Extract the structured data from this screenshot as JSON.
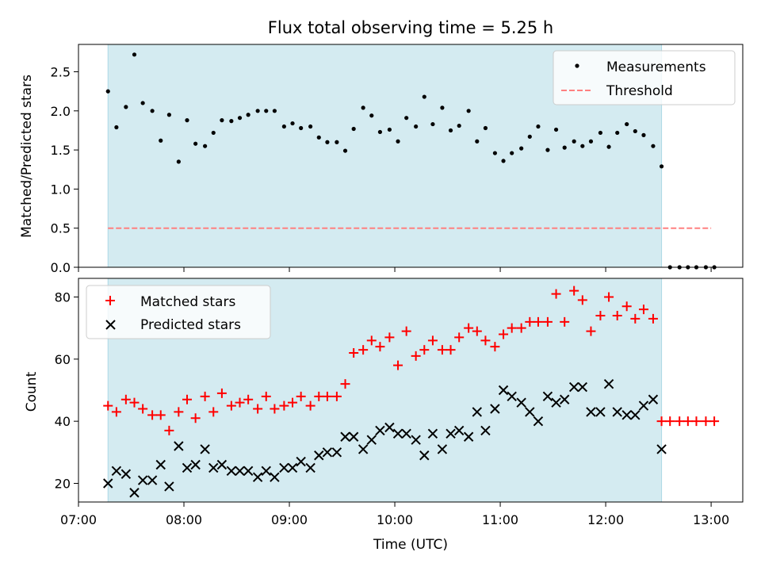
{
  "chart_data": [
    {
      "type": "scatter",
      "title": "Flux total observing time = 5.25 h",
      "xlabel": "",
      "ylabel": "Matched/Predicted stars",
      "xlim": [
        7.0,
        13.3
      ],
      "ylim": [
        0.0,
        2.85
      ],
      "yticks": [
        0.0,
        0.5,
        1.0,
        1.5,
        2.0,
        2.5
      ],
      "ytick_labels": [
        "0.0",
        "0.5",
        "1.0",
        "1.5",
        "2.0",
        "2.5"
      ],
      "shaded_span": [
        7.28,
        12.53
      ],
      "legend_position": "upper right",
      "series": [
        {
          "name": "Measurements",
          "marker": "dot",
          "color": "#000000",
          "x": [
            7.28,
            7.36,
            7.45,
            7.53,
            7.61,
            7.7,
            7.78,
            7.86,
            7.95,
            8.03,
            8.11,
            8.2,
            8.28,
            8.36,
            8.45,
            8.53,
            8.61,
            8.7,
            8.78,
            8.86,
            8.95,
            9.03,
            9.11,
            9.2,
            9.28,
            9.36,
            9.45,
            9.53,
            9.61,
            9.7,
            9.78,
            9.86,
            9.95,
            10.03,
            10.11,
            10.2,
            10.28,
            10.36,
            10.45,
            10.53,
            10.61,
            10.7,
            10.78,
            10.86,
            10.95,
            11.03,
            11.11,
            11.2,
            11.28,
            11.36,
            11.45,
            11.53,
            11.61,
            11.7,
            11.78,
            11.86,
            11.95,
            12.03,
            12.11,
            12.2,
            12.28,
            12.36,
            12.45,
            12.53,
            12.61,
            12.7,
            12.78,
            12.86,
            12.95,
            13.03
          ],
          "y": [
            2.25,
            1.79,
            2.05,
            2.72,
            2.1,
            2.0,
            1.62,
            1.95,
            1.35,
            1.88,
            1.58,
            1.55,
            1.72,
            1.88,
            1.87,
            1.91,
            1.95,
            2.0,
            2.0,
            2.0,
            1.8,
            1.84,
            1.78,
            1.8,
            1.66,
            1.6,
            1.6,
            1.49,
            1.77,
            2.04,
            1.94,
            1.73,
            1.76,
            1.61,
            1.91,
            1.8,
            2.18,
            1.83,
            2.04,
            1.75,
            1.81,
            2.0,
            1.61,
            1.78,
            1.46,
            1.36,
            1.46,
            1.52,
            1.67,
            1.8,
            1.5,
            1.76,
            1.53,
            1.61,
            1.55,
            1.61,
            1.72,
            1.54,
            1.72,
            1.83,
            1.74,
            1.69,
            1.55,
            1.29,
            0.0,
            0.0,
            0.0,
            0.0,
            0.0,
            0.0
          ]
        },
        {
          "name": "Threshold",
          "marker": "dashed-line",
          "color": "#ff8080",
          "x": [
            7.28,
            13.0
          ],
          "y": [
            0.5,
            0.5
          ]
        }
      ]
    },
    {
      "type": "scatter",
      "title": "",
      "xlabel": "Time (UTC)",
      "ylabel": "Count",
      "xlim": [
        7.0,
        13.3
      ],
      "ylim": [
        14.0,
        86.0
      ],
      "xticks": [
        7,
        8,
        9,
        10,
        11,
        12,
        13
      ],
      "xtick_labels": [
        "07:00",
        "08:00",
        "09:00",
        "10:00",
        "11:00",
        "12:00",
        "13:00"
      ],
      "yticks": [
        20,
        40,
        60,
        80
      ],
      "ytick_labels": [
        "20",
        "40",
        "60",
        "80"
      ],
      "shaded_span": [
        7.28,
        12.53
      ],
      "legend_position": "upper left",
      "series": [
        {
          "name": "Matched stars",
          "marker": "plus",
          "color": "#ff0000",
          "x": [
            7.28,
            7.36,
            7.45,
            7.53,
            7.61,
            7.7,
            7.78,
            7.86,
            7.95,
            8.03,
            8.11,
            8.2,
            8.28,
            8.36,
            8.45,
            8.53,
            8.61,
            8.7,
            8.78,
            8.86,
            8.95,
            9.03,
            9.11,
            9.2,
            9.28,
            9.36,
            9.45,
            9.53,
            9.61,
            9.7,
            9.78,
            9.86,
            9.95,
            10.03,
            10.11,
            10.2,
            10.28,
            10.36,
            10.45,
            10.53,
            10.61,
            10.7,
            10.78,
            10.86,
            10.95,
            11.03,
            11.11,
            11.2,
            11.28,
            11.36,
            11.45,
            11.53,
            11.61,
            11.7,
            11.78,
            11.86,
            11.95,
            12.03,
            12.11,
            12.2,
            12.28,
            12.36,
            12.45,
            12.53,
            12.61,
            12.7,
            12.78,
            12.86,
            12.95,
            13.03
          ],
          "y": [
            45,
            43,
            47,
            46,
            44,
            42,
            42,
            37,
            43,
            47,
            41,
            48,
            43,
            49,
            45,
            46,
            47,
            44,
            48,
            44,
            45,
            46,
            48,
            45,
            48,
            48,
            48,
            52,
            62,
            63,
            66,
            64,
            67,
            58,
            69,
            61,
            63,
            66,
            63,
            63,
            67,
            70,
            69,
            66,
            64,
            68,
            70,
            70,
            72,
            72,
            72,
            81,
            72,
            82,
            79,
            69,
            74,
            80,
            74,
            77,
            73,
            76,
            73,
            40,
            40,
            40,
            40,
            40,
            40,
            40
          ]
        },
        {
          "name": "Predicted stars",
          "marker": "x",
          "color": "#000000",
          "x": [
            7.28,
            7.36,
            7.45,
            7.53,
            7.61,
            7.7,
            7.78,
            7.86,
            7.95,
            8.03,
            8.11,
            8.2,
            8.28,
            8.36,
            8.45,
            8.53,
            8.61,
            8.7,
            8.78,
            8.86,
            8.95,
            9.03,
            9.11,
            9.2,
            9.28,
            9.36,
            9.45,
            9.53,
            9.61,
            9.7,
            9.78,
            9.86,
            9.95,
            10.03,
            10.11,
            10.2,
            10.28,
            10.36,
            10.45,
            10.53,
            10.61,
            10.7,
            10.78,
            10.86,
            10.95,
            11.03,
            11.11,
            11.2,
            11.28,
            11.36,
            11.45,
            11.53,
            11.61,
            11.7,
            11.78,
            11.86,
            11.95,
            12.03,
            12.11,
            12.2,
            12.28,
            12.36,
            12.45,
            12.53
          ],
          "y": [
            20,
            24,
            23,
            17,
            21,
            21,
            26,
            19,
            32,
            25,
            26,
            31,
            25,
            26,
            24,
            24,
            24,
            22,
            24,
            22,
            25,
            25,
            27,
            25,
            29,
            30,
            30,
            35,
            35,
            31,
            34,
            37,
            38,
            36,
            36,
            34,
            29,
            36,
            31,
            36,
            37,
            35,
            43,
            37,
            44,
            50,
            48,
            46,
            43,
            40,
            48,
            46,
            47,
            51,
            51,
            43,
            43,
            52,
            43,
            42,
            42,
            45,
            47,
            31
          ]
        }
      ]
    }
  ]
}
